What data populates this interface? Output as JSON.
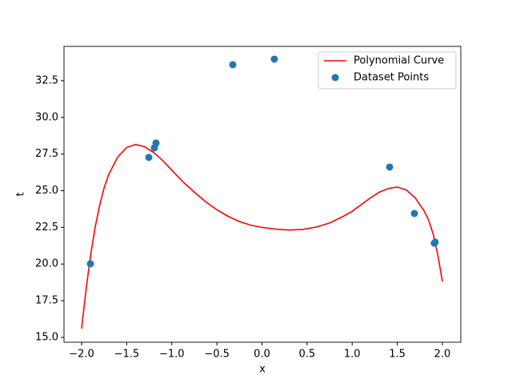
{
  "chart_data": {
    "type": "line",
    "xlabel": "x",
    "ylabel": "t",
    "xlim": [
      -2.195,
      2.204
    ],
    "ylim": [
      14.67,
      34.84
    ],
    "xticks": [
      {
        "value": -2.0,
        "label": "−2.0"
      },
      {
        "value": -1.5,
        "label": "−1.5"
      },
      {
        "value": -1.0,
        "label": "−1.0"
      },
      {
        "value": -0.5,
        "label": "−0.5"
      },
      {
        "value": 0.0,
        "label": "0.0"
      },
      {
        "value": 0.5,
        "label": "0.5"
      },
      {
        "value": 1.0,
        "label": "1.0"
      },
      {
        "value": 1.5,
        "label": "1.5"
      },
      {
        "value": 2.0,
        "label": "2.0"
      }
    ],
    "yticks": [
      {
        "value": 15.0,
        "label": "15.0"
      },
      {
        "value": 17.5,
        "label": "17.5"
      },
      {
        "value": 20.0,
        "label": "20.0"
      },
      {
        "value": 22.5,
        "label": "22.5"
      },
      {
        "value": 25.0,
        "label": "25.0"
      },
      {
        "value": 27.5,
        "label": "27.5"
      },
      {
        "value": 30.0,
        "label": "30.0"
      },
      {
        "value": 32.5,
        "label": "32.5"
      }
    ],
    "legend": "upper right",
    "series": [
      {
        "name": "Polynomial Curve",
        "type": "line",
        "color": "#ff0000",
        "x": [
          -2.0,
          -1.95,
          -1.9,
          -1.85,
          -1.8,
          -1.75,
          -1.7,
          -1.6,
          -1.5,
          -1.4,
          -1.3,
          -1.2,
          -1.1,
          -1.0,
          -0.875,
          -0.75,
          -0.625,
          -0.5,
          -0.375,
          -0.25,
          -0.125,
          0.0,
          0.15,
          0.3,
          0.45,
          0.6,
          0.75,
          0.9,
          1.0,
          1.1,
          1.2,
          1.3,
          1.4,
          1.5,
          1.6,
          1.7,
          1.8,
          1.85,
          1.9,
          1.95,
          2.0
        ],
        "values": [
          15.6,
          18.3,
          20.6,
          22.5,
          24.0,
          25.2,
          26.1,
          27.3,
          27.95,
          28.15,
          28.0,
          27.6,
          27.05,
          26.4,
          25.6,
          24.9,
          24.25,
          23.7,
          23.25,
          22.9,
          22.65,
          22.5,
          22.38,
          22.32,
          22.36,
          22.52,
          22.8,
          23.25,
          23.6,
          24.05,
          24.5,
          24.9,
          25.15,
          25.25,
          25.05,
          24.5,
          23.6,
          22.95,
          22.0,
          20.6,
          18.8
        ]
      },
      {
        "name": "Dataset Points",
        "type": "scatter",
        "color": "#1f77b4",
        "x": [
          -1.902,
          -1.255,
          -1.193,
          -1.175,
          -0.324,
          0.137,
          1.415,
          1.69,
          1.92,
          1.91
        ],
        "values": [
          20.02,
          27.27,
          27.92,
          28.25,
          33.59,
          33.97,
          26.61,
          23.45,
          21.49,
          21.42
        ]
      }
    ]
  }
}
